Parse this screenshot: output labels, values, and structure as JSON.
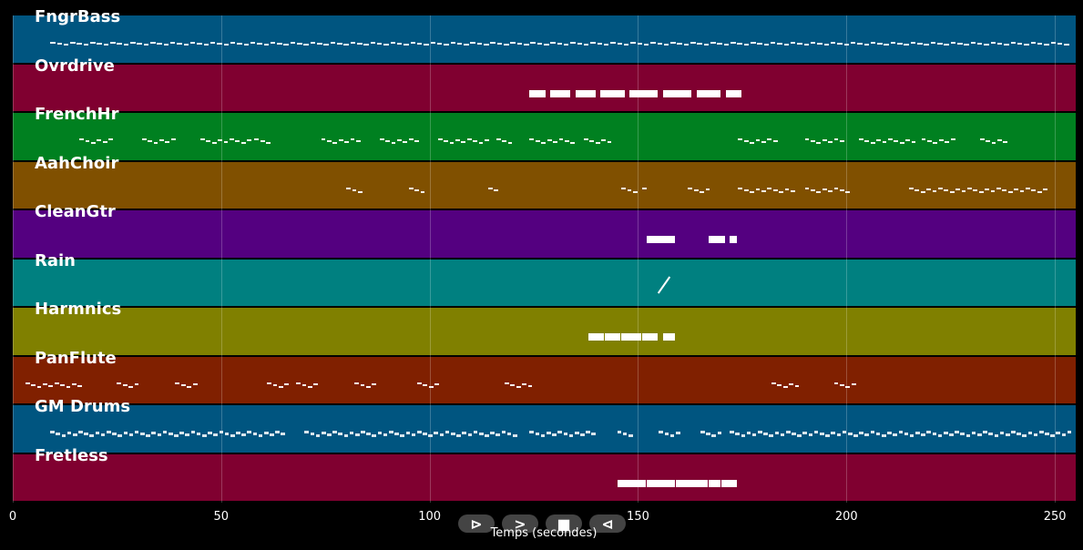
{
  "tracks": [
    {
      "name": "FngrBass",
      "color": "#005580",
      "kind": "bass",
      "density": 95,
      "notes": [
        [
          9,
          253
        ]
      ]
    },
    {
      "name": "Ovrdrive",
      "color": "#800030",
      "kind": "block",
      "notes": [
        [
          124,
          128
        ],
        [
          129,
          134
        ],
        [
          135,
          140
        ],
        [
          141,
          147
        ],
        [
          148,
          155
        ],
        [
          156,
          163
        ],
        [
          164,
          170
        ],
        [
          171,
          175
        ]
      ]
    },
    {
      "name": "FrenchHr",
      "color": "#008020",
      "kind": "phrase",
      "notes": [
        [
          16,
          24
        ],
        [
          31,
          39
        ],
        [
          45,
          57
        ],
        [
          58,
          61
        ],
        [
          74,
          83
        ],
        [
          88,
          97
        ],
        [
          102,
          114
        ],
        [
          116,
          119
        ],
        [
          124,
          134
        ],
        [
          137,
          144
        ],
        [
          174,
          183
        ],
        [
          190,
          199
        ],
        [
          203,
          216
        ],
        [
          218,
          226
        ],
        [
          232,
          239
        ]
      ]
    },
    {
      "name": "AahChoir",
      "color": "#805000",
      "kind": "phrase",
      "notes": [
        [
          80,
          84
        ],
        [
          95,
          99
        ],
        [
          114,
          116
        ],
        [
          146,
          149
        ],
        [
          151,
          152
        ],
        [
          162,
          167
        ],
        [
          174,
          187
        ],
        [
          190,
          200
        ],
        [
          215,
          248
        ]
      ]
    },
    {
      "name": "CleanGtr",
      "color": "#540080",
      "kind": "block",
      "notes": [
        [
          152,
          159
        ],
        [
          167,
          171
        ],
        [
          172,
          174
        ]
      ]
    },
    {
      "name": "Rain",
      "color": "#008080",
      "kind": "slant",
      "notes": [
        [
          156,
          159
        ]
      ]
    },
    {
      "name": "Harmnics",
      "color": "#808000",
      "kind": "block",
      "notes": [
        [
          138,
          142
        ],
        [
          142,
          146
        ],
        [
          146,
          151
        ],
        [
          151,
          155
        ],
        [
          156,
          159
        ]
      ]
    },
    {
      "name": "PanFlute",
      "color": "#802000",
      "kind": "phrase",
      "notes": [
        [
          3,
          16
        ],
        [
          25,
          30
        ],
        [
          39,
          44
        ],
        [
          61,
          66
        ],
        [
          68,
          73
        ],
        [
          82,
          87
        ],
        [
          97,
          102
        ],
        [
          118,
          124
        ],
        [
          182,
          188
        ],
        [
          197,
          202
        ]
      ]
    },
    {
      "name": "GM Drums",
      "color": "#005580",
      "kind": "drums",
      "density": 150,
      "notes": [
        [
          9,
          65
        ],
        [
          70,
          120
        ],
        [
          124,
          140
        ],
        [
          145,
          149
        ],
        [
          155,
          160
        ],
        [
          165,
          170
        ],
        [
          172,
          253
        ]
      ]
    },
    {
      "name": "Fretless",
      "color": "#800030",
      "kind": "block",
      "notes": [
        [
          145,
          152
        ],
        [
          152,
          159
        ],
        [
          159,
          167
        ],
        [
          167,
          170
        ],
        [
          170,
          174
        ]
      ]
    }
  ],
  "x_axis": {
    "label": "Temps (secondes)",
    "ticks": [
      0,
      50,
      100,
      150,
      200,
      250
    ],
    "max": 255
  },
  "controls": [
    {
      "name": "play-button",
      "symbol": "⊳"
    },
    {
      "name": "next-button",
      "symbol": ">"
    },
    {
      "name": "stop-button",
      "symbol": "■"
    },
    {
      "name": "prev-button",
      "symbol": "⊲"
    }
  ]
}
